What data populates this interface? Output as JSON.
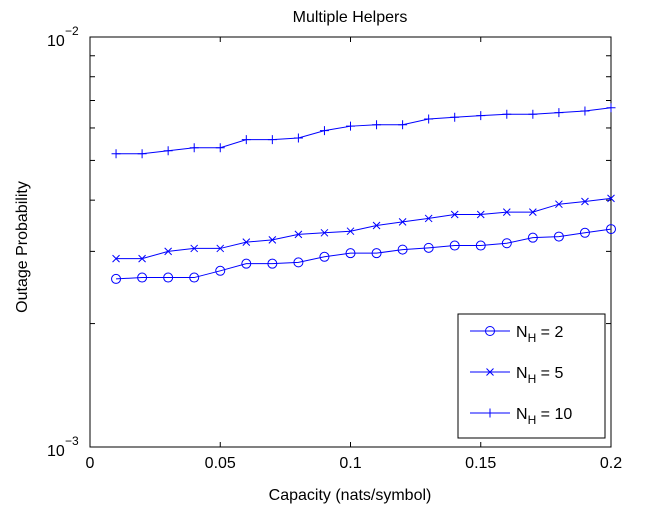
{
  "chart_data": {
    "type": "line",
    "title": "Multiple Helpers",
    "xlabel": "Capacity (nats/symbol)",
    "ylabel": "Outage Probability",
    "xlim": [
      0,
      0.2
    ],
    "ylim": [
      0.001,
      0.01
    ],
    "yscale": "log",
    "grid": false,
    "legend_position": "bottom-right",
    "x_ticks": [
      {
        "value": 0,
        "label": "0"
      },
      {
        "value": 0.05,
        "label": "0.05"
      },
      {
        "value": 0.1,
        "label": "0.1"
      },
      {
        "value": 0.15,
        "label": "0.15"
      },
      {
        "value": 0.2,
        "label": "0.2"
      }
    ],
    "y_ticks": [
      {
        "value": 0.001,
        "base": "10",
        "exp": "−3"
      },
      {
        "value": 0.01,
        "base": "10",
        "exp": "−2"
      }
    ],
    "x": [
      0.01,
      0.02,
      0.03,
      0.04,
      0.05,
      0.06,
      0.07,
      0.08,
      0.09,
      0.1,
      0.11,
      0.12,
      0.13,
      0.14,
      0.15,
      0.16,
      0.17,
      0.18,
      0.19,
      0.2
    ],
    "series": [
      {
        "name": "N_H = 2",
        "label_main": "N",
        "label_sub": "H",
        "label_rest": " = 2",
        "marker": "circle",
        "color": "#0000ff",
        "values": [
          0.00257,
          0.00259,
          0.00259,
          0.00259,
          0.00269,
          0.0028,
          0.0028,
          0.00282,
          0.00291,
          0.00297,
          0.00297,
          0.00303,
          0.00306,
          0.0031,
          0.0031,
          0.00314,
          0.00324,
          0.00326,
          0.00333,
          0.0034
        ]
      },
      {
        "name": "N_H = 5",
        "label_main": "N",
        "label_sub": "H",
        "label_rest": " = 5",
        "marker": "x",
        "color": "#0000ff",
        "values": [
          0.00288,
          0.00288,
          0.003,
          0.00305,
          0.00305,
          0.00316,
          0.0032,
          0.0033,
          0.00333,
          0.00336,
          0.00347,
          0.00354,
          0.00361,
          0.00369,
          0.00369,
          0.00374,
          0.00374,
          0.00391,
          0.00397,
          0.00404
        ]
      },
      {
        "name": "N_H = 10",
        "label_main": "N",
        "label_sub": "H",
        "label_rest": " = 10",
        "marker": "plus",
        "color": "#0000ff",
        "values": [
          0.00519,
          0.00519,
          0.00528,
          0.00537,
          0.00537,
          0.00562,
          0.00562,
          0.00567,
          0.00591,
          0.00606,
          0.00611,
          0.00611,
          0.00631,
          0.00637,
          0.00643,
          0.00648,
          0.00648,
          0.00654,
          0.0066,
          0.00672
        ]
      }
    ]
  }
}
